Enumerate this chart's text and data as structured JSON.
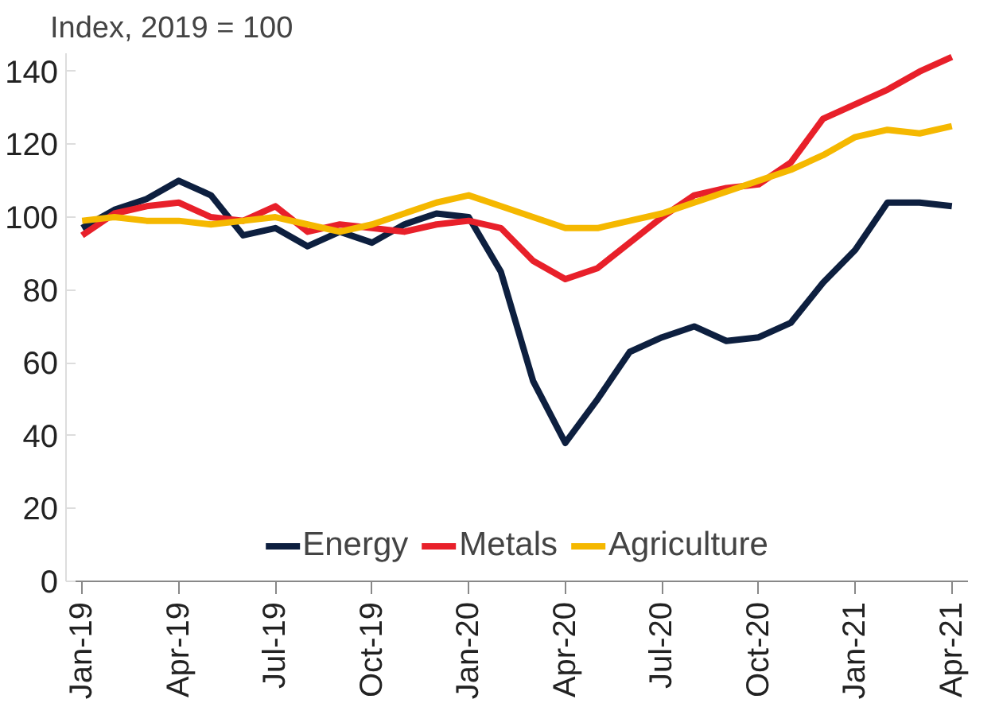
{
  "chart_data": {
    "type": "line",
    "ylabel": "Index, 2019 = 100",
    "categories": [
      "Jan-19",
      null,
      null,
      "Apr-19",
      null,
      null,
      "Jul-19",
      null,
      null,
      "Oct-19",
      null,
      null,
      "Jan-20",
      null,
      null,
      "Apr-20",
      null,
      null,
      "Jul-20",
      null,
      null,
      "Oct-20",
      null,
      null,
      "Jan-21",
      null,
      null,
      "Apr-21"
    ],
    "series": [
      {
        "name": "Energy",
        "color": "#0d1f3f",
        "values": [
          97,
          102,
          105,
          110,
          106,
          95,
          97,
          92,
          96,
          93,
          98,
          101,
          100,
          85,
          55,
          38,
          50,
          63,
          67,
          70,
          66,
          67,
          71,
          82,
          91,
          104,
          104,
          103
        ]
      },
      {
        "name": "Metals",
        "color": "#e8202a",
        "values": [
          95,
          101,
          103,
          104,
          100,
          99,
          103,
          96,
          98,
          97,
          96,
          98,
          99,
          97,
          88,
          83,
          86,
          93,
          100,
          106,
          108,
          109,
          115,
          127,
          131,
          135,
          140,
          144
        ]
      },
      {
        "name": "Agriculture",
        "color": "#f5b800",
        "values": [
          99,
          100,
          99,
          99,
          98,
          99,
          100,
          98,
          96,
          98,
          101,
          104,
          106,
          103,
          100,
          97,
          97,
          99,
          101,
          104,
          107,
          110,
          113,
          117,
          122,
          124,
          123,
          125
        ]
      }
    ],
    "ylim": [
      0,
      145
    ],
    "yticks": [
      0,
      20,
      40,
      60,
      80,
      100,
      120,
      140
    ],
    "grid": false,
    "legend": "bottom",
    "line_style": "solid",
    "marker": "none"
  }
}
